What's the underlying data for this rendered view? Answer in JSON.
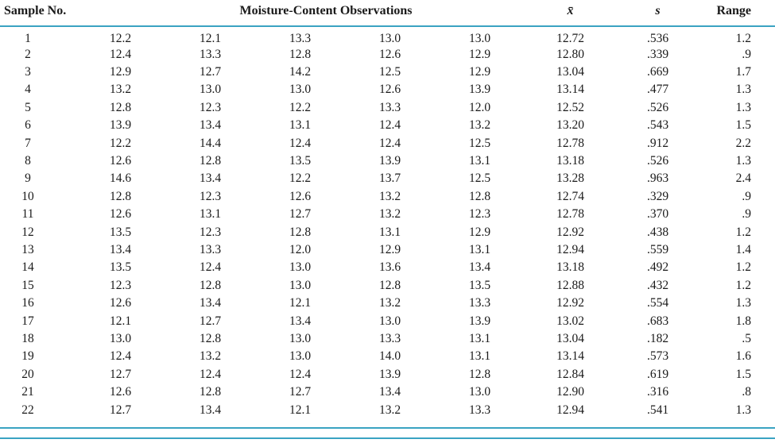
{
  "colors": {
    "rule": "#3aa3c2"
  },
  "table": {
    "headers": {
      "sample": "Sample No.",
      "observations": "Moisture-Content Observations",
      "mean": "x̄",
      "s": "s",
      "range": "Range"
    },
    "rows": [
      {
        "sample": "1",
        "obs": [
          "12.2",
          "12.1",
          "13.3",
          "13.0",
          "13.0"
        ],
        "mean": "12.72",
        "s": ".536",
        "range": "1.2"
      },
      {
        "sample": "2",
        "obs": [
          "12.4",
          "13.3",
          "12.8",
          "12.6",
          "12.9"
        ],
        "mean": "12.80",
        "s": ".339",
        "range": ".9"
      },
      {
        "sample": "3",
        "obs": [
          "12.9",
          "12.7",
          "14.2",
          "12.5",
          "12.9"
        ],
        "mean": "13.04",
        "s": ".669",
        "range": "1.7"
      },
      {
        "sample": "4",
        "obs": [
          "13.2",
          "13.0",
          "13.0",
          "12.6",
          "13.9"
        ],
        "mean": "13.14",
        "s": ".477",
        "range": "1.3"
      },
      {
        "sample": "5",
        "obs": [
          "12.8",
          "12.3",
          "12.2",
          "13.3",
          "12.0"
        ],
        "mean": "12.52",
        "s": ".526",
        "range": "1.3"
      },
      {
        "sample": "6",
        "obs": [
          "13.9",
          "13.4",
          "13.1",
          "12.4",
          "13.2"
        ],
        "mean": "13.20",
        "s": ".543",
        "range": "1.5"
      },
      {
        "sample": "7",
        "obs": [
          "12.2",
          "14.4",
          "12.4",
          "12.4",
          "12.5"
        ],
        "mean": "12.78",
        "s": ".912",
        "range": "2.2"
      },
      {
        "sample": "8",
        "obs": [
          "12.6",
          "12.8",
          "13.5",
          "13.9",
          "13.1"
        ],
        "mean": "13.18",
        "s": ".526",
        "range": "1.3"
      },
      {
        "sample": "9",
        "obs": [
          "14.6",
          "13.4",
          "12.2",
          "13.7",
          "12.5"
        ],
        "mean": "13.28",
        "s": ".963",
        "range": "2.4"
      },
      {
        "sample": "10",
        "obs": [
          "12.8",
          "12.3",
          "12.6",
          "13.2",
          "12.8"
        ],
        "mean": "12.74",
        "s": ".329",
        "range": ".9"
      },
      {
        "sample": "11",
        "obs": [
          "12.6",
          "13.1",
          "12.7",
          "13.2",
          "12.3"
        ],
        "mean": "12.78",
        "s": ".370",
        "range": ".9"
      },
      {
        "sample": "12",
        "obs": [
          "13.5",
          "12.3",
          "12.8",
          "13.1",
          "12.9"
        ],
        "mean": "12.92",
        "s": ".438",
        "range": "1.2"
      },
      {
        "sample": "13",
        "obs": [
          "13.4",
          "13.3",
          "12.0",
          "12.9",
          "13.1"
        ],
        "mean": "12.94",
        "s": ".559",
        "range": "1.4"
      },
      {
        "sample": "14",
        "obs": [
          "13.5",
          "12.4",
          "13.0",
          "13.6",
          "13.4"
        ],
        "mean": "13.18",
        "s": ".492",
        "range": "1.2"
      },
      {
        "sample": "15",
        "obs": [
          "12.3",
          "12.8",
          "13.0",
          "12.8",
          "13.5"
        ],
        "mean": "12.88",
        "s": ".432",
        "range": "1.2"
      },
      {
        "sample": "16",
        "obs": [
          "12.6",
          "13.4",
          "12.1",
          "13.2",
          "13.3"
        ],
        "mean": "12.92",
        "s": ".554",
        "range": "1.3"
      },
      {
        "sample": "17",
        "obs": [
          "12.1",
          "12.7",
          "13.4",
          "13.0",
          "13.9"
        ],
        "mean": "13.02",
        "s": ".683",
        "range": "1.8"
      },
      {
        "sample": "18",
        "obs": [
          "13.0",
          "12.8",
          "13.0",
          "13.3",
          "13.1"
        ],
        "mean": "13.04",
        "s": ".182",
        "range": ".5"
      },
      {
        "sample": "19",
        "obs": [
          "12.4",
          "13.2",
          "13.0",
          "14.0",
          "13.1"
        ],
        "mean": "13.14",
        "s": ".573",
        "range": "1.6"
      },
      {
        "sample": "20",
        "obs": [
          "12.7",
          "12.4",
          "12.4",
          "13.9",
          "12.8"
        ],
        "mean": "12.84",
        "s": ".619",
        "range": "1.5"
      },
      {
        "sample": "21",
        "obs": [
          "12.6",
          "12.8",
          "12.7",
          "13.4",
          "13.0"
        ],
        "mean": "12.90",
        "s": ".316",
        "range": ".8"
      },
      {
        "sample": "22",
        "obs": [
          "12.7",
          "13.4",
          "12.1",
          "13.2",
          "13.3"
        ],
        "mean": "12.94",
        "s": ".541",
        "range": "1.3"
      }
    ]
  }
}
